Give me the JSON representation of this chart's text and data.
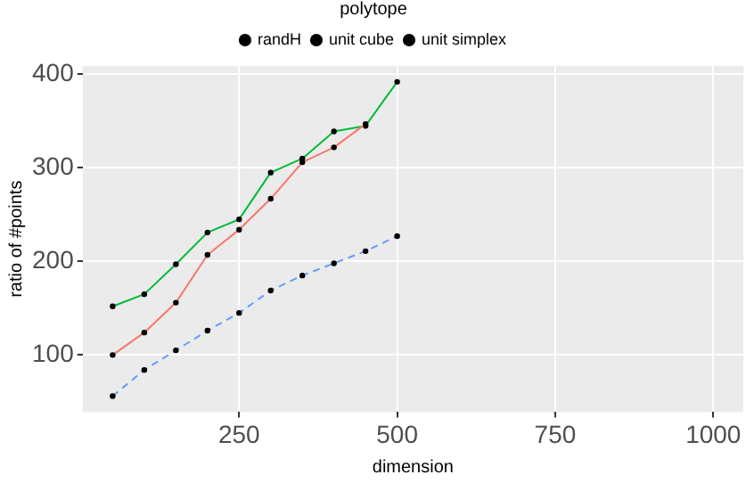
{
  "chart_data": {
    "type": "line",
    "xlabel": "dimension",
    "ylabel": "ratio of #points",
    "legend_title": "polytope",
    "legend": "top",
    "grid": true,
    "marker": "circle",
    "x": [
      50,
      100,
      150,
      200,
      250,
      300,
      350,
      400,
      450,
      500
    ],
    "series": [
      {
        "name": "randH",
        "color": "#f8766d",
        "line_style": "solid",
        "values": [
          100,
          124,
          156,
          207,
          234,
          267,
          306,
          322,
          347,
          null
        ]
      },
      {
        "name": "unit cube",
        "color": "#00ba38",
        "line_style": "solid",
        "values": [
          152,
          165,
          197,
          231,
          245,
          295,
          310,
          339,
          345,
          392
        ]
      },
      {
        "name": "unit simplex",
        "color": "#619cff",
        "line_style": "dashed",
        "values": [
          56,
          84,
          105,
          126,
          145,
          169,
          185,
          198,
          211,
          227
        ]
      }
    ],
    "xlim": [
      2.5,
      1047.5
    ],
    "xticks": [
      250,
      500,
      750,
      1000
    ],
    "ylim": [
      39,
      409
    ],
    "yticks": [
      100,
      200,
      300,
      400
    ]
  }
}
